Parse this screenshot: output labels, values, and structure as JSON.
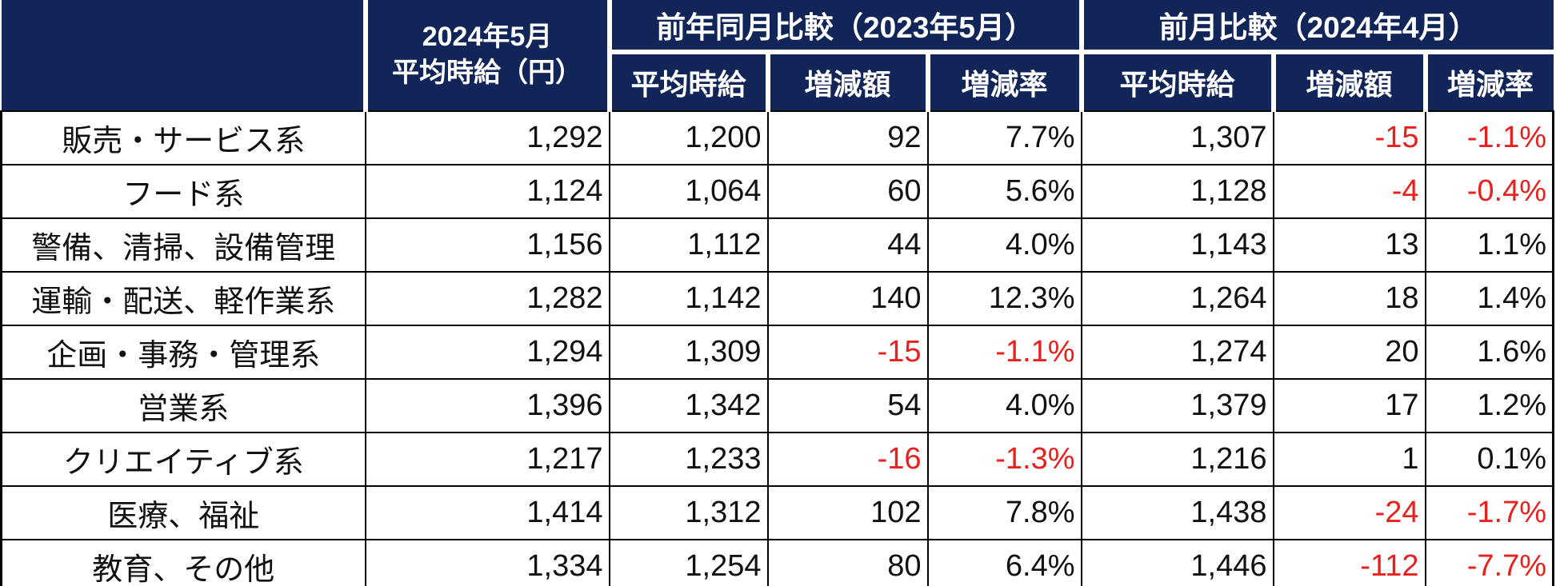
{
  "chart_data": {
    "type": "table",
    "header": {
      "corner": "",
      "current_line1": "2024年5月",
      "current_line2": "平均時給（円）",
      "group_yoy": "前年同月比較（2023年5月）",
      "group_mom": "前月比較（2024年4月）",
      "sub_avg": "平均時給",
      "sub_diff": "増減額",
      "sub_rate": "増減率"
    },
    "rows": [
      {
        "label": "販売・サービス系",
        "current": "1,292",
        "yoy_avg": "1,200",
        "yoy_diff": "92",
        "yoy_rate": "7.7%",
        "mom_avg": "1,307",
        "mom_diff": "-15",
        "mom_rate": "-1.1%"
      },
      {
        "label": "フード系",
        "current": "1,124",
        "yoy_avg": "1,064",
        "yoy_diff": "60",
        "yoy_rate": "5.6%",
        "mom_avg": "1,128",
        "mom_diff": "-4",
        "mom_rate": "-0.4%"
      },
      {
        "label": "警備、清掃、設備管理",
        "current": "1,156",
        "yoy_avg": "1,112",
        "yoy_diff": "44",
        "yoy_rate": "4.0%",
        "mom_avg": "1,143",
        "mom_diff": "13",
        "mom_rate": "1.1%"
      },
      {
        "label": "運輸・配送、軽作業系",
        "current": "1,282",
        "yoy_avg": "1,142",
        "yoy_diff": "140",
        "yoy_rate": "12.3%",
        "mom_avg": "1,264",
        "mom_diff": "18",
        "mom_rate": "1.4%"
      },
      {
        "label": "企画・事務・管理系",
        "current": "1,294",
        "yoy_avg": "1,309",
        "yoy_diff": "-15",
        "yoy_rate": "-1.1%",
        "mom_avg": "1,274",
        "mom_diff": "20",
        "mom_rate": "1.6%"
      },
      {
        "label": "営業系",
        "current": "1,396",
        "yoy_avg": "1,342",
        "yoy_diff": "54",
        "yoy_rate": "4.0%",
        "mom_avg": "1,379",
        "mom_diff": "17",
        "mom_rate": "1.2%"
      },
      {
        "label": "クリエイティブ系",
        "current": "1,217",
        "yoy_avg": "1,233",
        "yoy_diff": "-16",
        "yoy_rate": "-1.3%",
        "mom_avg": "1,216",
        "mom_diff": "1",
        "mom_rate": "0.1%"
      },
      {
        "label": "医療、福祉",
        "current": "1,414",
        "yoy_avg": "1,312",
        "yoy_diff": "102",
        "yoy_rate": "7.8%",
        "mom_avg": "1,438",
        "mom_diff": "-24",
        "mom_rate": "-1.7%"
      },
      {
        "label": "教育、その他",
        "current": "1,334",
        "yoy_avg": "1,254",
        "yoy_diff": "80",
        "yoy_rate": "6.4%",
        "mom_avg": "1,446",
        "mom_diff": "-112",
        "mom_rate": "-7.7%"
      }
    ],
    "layout": {
      "grid": "on",
      "negative_values_in_red": true
    }
  },
  "colors": {
    "header_bg": "#112559",
    "header_text": "#ffffff",
    "body_text": "#111111",
    "negative_text": "#e8201e",
    "grid_line": "#000000"
  }
}
